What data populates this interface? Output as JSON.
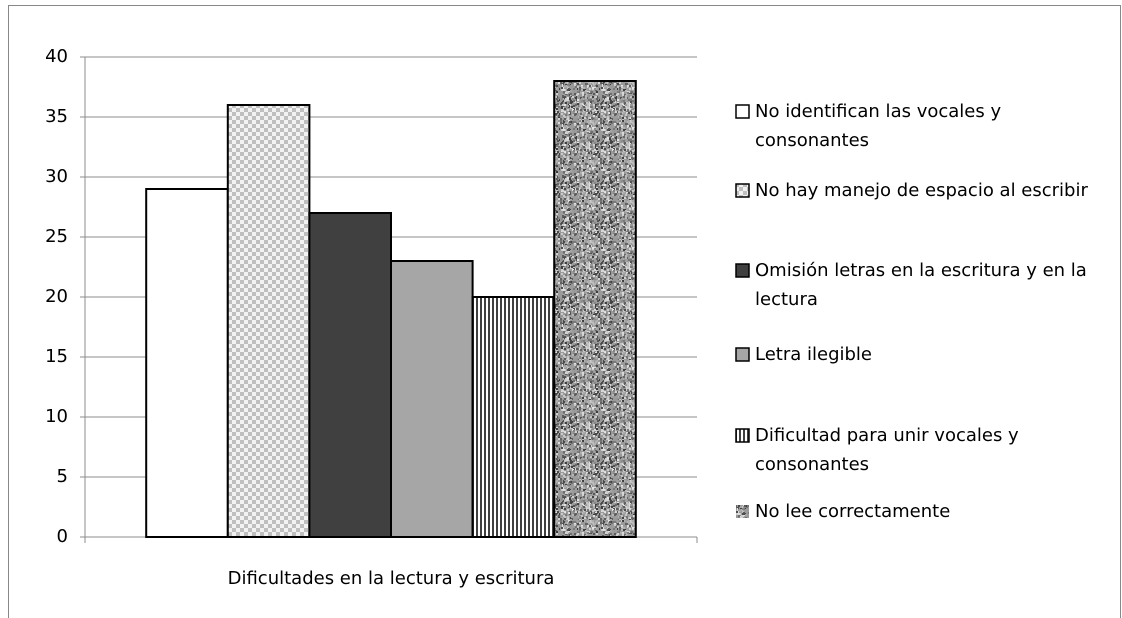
{
  "chart_data": {
    "type": "bar",
    "categories": [
      "Dificultades en la lectura y escritura"
    ],
    "series": [
      {
        "name": "No identifican las vocales y consonantes",
        "color": "#ffffff",
        "values": [
          29
        ]
      },
      {
        "name": "No hay manejo de espacio al escribir",
        "color": "#d9d9d9",
        "pattern": "checker",
        "values": [
          36
        ]
      },
      {
        "name": "Omisión letras en la escritura y en la lectura",
        "color": "#404040",
        "values": [
          27
        ]
      },
      {
        "name": "Letra ilegible",
        "color": "#a6a6a6",
        "values": [
          23
        ]
      },
      {
        "name": "Dificultad para unir vocales y consonantes",
        "color": "#404040",
        "pattern": "stripes",
        "values": [
          20
        ]
      },
      {
        "name": "No lee correctamente",
        "color": "#9a9a9a",
        "pattern": "noise",
        "values": [
          38
        ]
      }
    ],
    "ylim": [
      0,
      40
    ],
    "yticks": [
      0,
      5,
      10,
      15,
      20,
      25,
      30,
      35,
      40
    ],
    "grid": true,
    "legend": "right"
  }
}
